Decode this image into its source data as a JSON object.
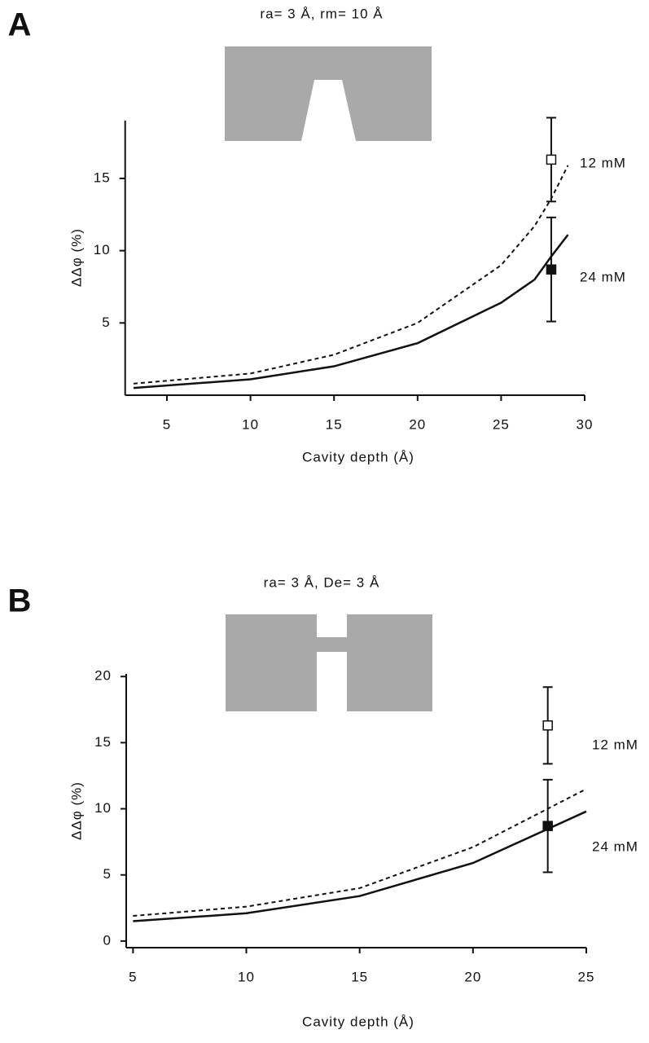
{
  "chart_data": [
    {
      "type": "line",
      "panel": "A",
      "title": "ra= 3 Å, rm= 10 Å",
      "x_label": "Cavity depth (Å)",
      "y_label": "ΔΔφ (%)",
      "xlim": [
        2.5,
        30
      ],
      "ylim": [
        0,
        19
      ],
      "xticks": [
        5,
        10,
        15,
        20,
        25,
        30
      ],
      "yticks": [
        5,
        10,
        15
      ],
      "x": [
        3,
        10,
        15,
        20,
        25,
        27,
        28,
        29
      ],
      "series": [
        {
          "name": "12 mM",
          "color": "#111111",
          "dashed": true,
          "values": [
            0.8,
            1.5,
            2.8,
            5.0,
            9.0,
            11.7,
            13.6,
            15.9
          ]
        },
        {
          "name": "24 mM",
          "color": "#111111",
          "dashed": false,
          "values": [
            0.5,
            1.1,
            2.0,
            3.6,
            6.4,
            8.0,
            9.6,
            11.1
          ]
        }
      ],
      "points": [
        {
          "x": 28,
          "value": 16.3,
          "error": 2.9,
          "filled": false
        },
        {
          "x": 28,
          "value": 8.7,
          "error": 3.6,
          "filled": true
        }
      ]
    },
    {
      "type": "line",
      "panel": "B",
      "title": "ra= 3 Å, De= 3 Å",
      "x_label": "Cavity depth (Å)",
      "y_label": "ΔΔφ (%)",
      "xlim": [
        4.7,
        25
      ],
      "ylim": [
        -0.5,
        20.2
      ],
      "xticks": [
        5,
        10,
        15,
        20,
        25
      ],
      "yticks": [
        0,
        5,
        10,
        15,
        20
      ],
      "x": [
        5,
        10,
        15,
        20,
        25
      ],
      "series": [
        {
          "name": "12 mM",
          "color": "#111111",
          "dashed": true,
          "values": [
            1.9,
            2.6,
            4.0,
            7.1,
            11.5
          ]
        },
        {
          "name": "24 mM",
          "color": "#111111",
          "dashed": false,
          "values": [
            1.5,
            2.1,
            3.4,
            5.9,
            9.8
          ]
        }
      ],
      "points": [
        {
          "x": 23.3,
          "value": 16.3,
          "error": 2.9,
          "filled": false
        },
        {
          "x": 23.3,
          "value": 8.7,
          "error": 3.5,
          "filled": true
        }
      ]
    }
  ]
}
